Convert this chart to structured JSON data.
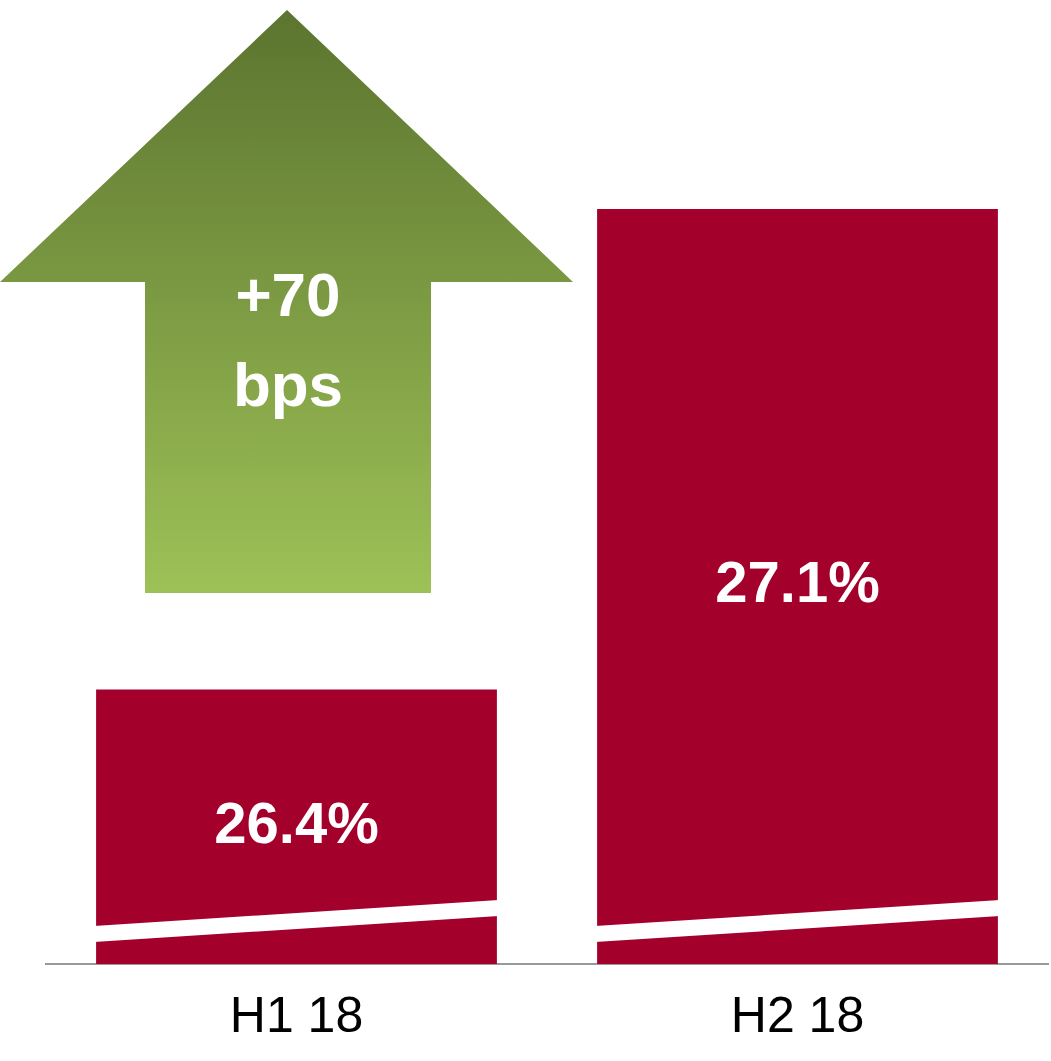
{
  "chart_data": {
    "type": "bar",
    "categories": [
      "H1 18",
      "H2 18"
    ],
    "values": [
      26.4,
      27.1
    ],
    "value_labels": [
      "26.4%",
      "27.1%"
    ],
    "color": "#a3002c",
    "grid": false,
    "legend": false,
    "tick_labels": "x",
    "annotations": [
      "+70 bps"
    ]
  }
}
